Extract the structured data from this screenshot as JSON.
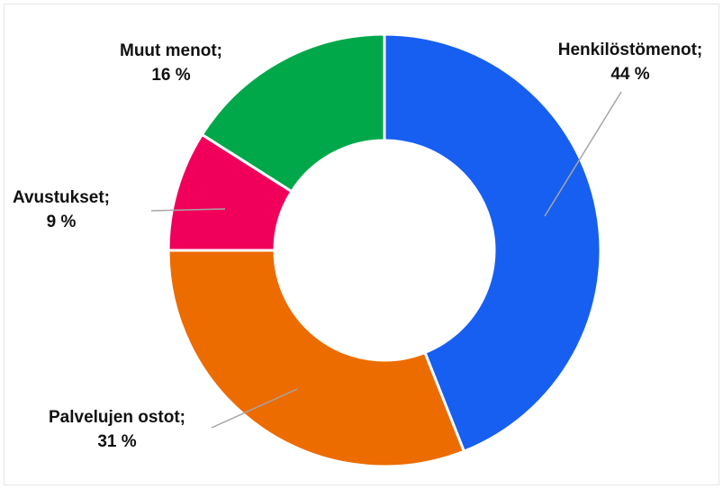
{
  "chart_data": {
    "type": "donut",
    "categories": [
      "Henkilöstömenot;",
      "Palvelujen ostot;",
      "Avustukset;",
      "Muut menot;"
    ],
    "values": [
      44,
      31,
      9,
      16
    ],
    "value_labels": [
      "44 %",
      "31 %",
      "9 %",
      "16 %"
    ],
    "colors": [
      "#175ff0",
      "#ec6c00",
      "#f0005a",
      "#00a84a"
    ]
  }
}
